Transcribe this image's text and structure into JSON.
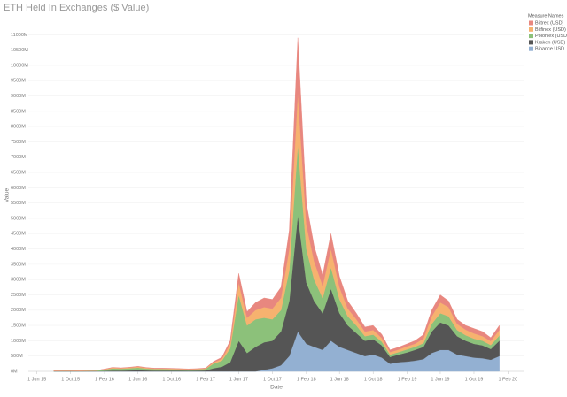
{
  "chart_data": {
    "type": "area",
    "stacked": true,
    "title": "ETH Held In Exchanges ($ Value)",
    "x_label": "Date",
    "y_label": "Value",
    "legend_title": "Measure Names",
    "legend_position": "top-right",
    "grid": true,
    "x": [
      "2015-08-01",
      "2015-09-01",
      "2015-10-01",
      "2015-11-01",
      "2015-12-01",
      "2016-01-01",
      "2016-02-01",
      "2016-03-01",
      "2016-04-01",
      "2016-05-01",
      "2016-06-01",
      "2016-07-01",
      "2016-08-01",
      "2016-09-01",
      "2016-10-01",
      "2016-11-01",
      "2016-12-01",
      "2017-01-01",
      "2017-02-01",
      "2017-03-01",
      "2017-04-01",
      "2017-05-01",
      "2017-06-01",
      "2017-07-01",
      "2017-08-01",
      "2017-09-01",
      "2017-10-01",
      "2017-11-01",
      "2017-12-01",
      "2018-01-01",
      "2018-02-01",
      "2018-03-01",
      "2018-04-01",
      "2018-05-01",
      "2018-06-01",
      "2018-07-01",
      "2018-08-01",
      "2018-09-01",
      "2018-10-01",
      "2018-11-01",
      "2018-12-01",
      "2019-01-01",
      "2019-02-01",
      "2019-03-01",
      "2019-04-01",
      "2019-05-01",
      "2019-06-01",
      "2019-07-01",
      "2019-08-01",
      "2019-09-01",
      "2019-10-01",
      "2019-11-01",
      "2019-12-01",
      "2020-01-01"
    ],
    "series": [
      {
        "name": "Bittrex (USD)",
        "color": "#e8877f",
        "values": [
          1,
          1,
          1,
          1,
          2,
          2,
          5,
          10,
          10,
          10,
          15,
          10,
          10,
          10,
          10,
          10,
          10,
          10,
          10,
          30,
          50,
          100,
          300,
          200,
          250,
          300,
          300,
          350,
          600,
          1800,
          700,
          500,
          350,
          500,
          350,
          250,
          200,
          150,
          150,
          120,
          70,
          80,
          80,
          100,
          130,
          200,
          250,
          200,
          150,
          140,
          160,
          150,
          110,
          150
        ]
      },
      {
        "name": "Bitfinex (USD)",
        "color": "#f6b26f",
        "values": [
          3,
          3,
          3,
          3,
          4,
          5,
          15,
          25,
          20,
          25,
          30,
          25,
          20,
          20,
          20,
          15,
          15,
          15,
          20,
          40,
          60,
          150,
          400,
          250,
          300,
          350,
          350,
          400,
          700,
          1700,
          800,
          600,
          400,
          600,
          400,
          250,
          200,
          150,
          150,
          120,
          80,
          80,
          100,
          100,
          150,
          250,
          350,
          300,
          200,
          180,
          170,
          150,
          130,
          180
        ]
      },
      {
        "name": "Poloniex (USD)",
        "color": "#8cc17a",
        "values": [
          10,
          12,
          12,
          10,
          12,
          15,
          40,
          70,
          60,
          70,
          80,
          60,
          50,
          50,
          45,
          40,
          35,
          40,
          50,
          150,
          200,
          450,
          1500,
          900,
          900,
          800,
          700,
          700,
          1000,
          2300,
          1100,
          700,
          500,
          700,
          450,
          300,
          250,
          150,
          150,
          120,
          80,
          80,
          100,
          100,
          120,
          250,
          300,
          300,
          200,
          180,
          170,
          150,
          130,
          170
        ]
      },
      {
        "name": "Kraken (USD)",
        "color": "#555555",
        "values": [
          3,
          4,
          4,
          4,
          5,
          6,
          15,
          25,
          25,
          30,
          40,
          30,
          25,
          25,
          25,
          25,
          20,
          25,
          30,
          100,
          150,
          300,
          1000,
          600,
          800,
          900,
          900,
          1100,
          1800,
          3800,
          2000,
          1500,
          1200,
          1700,
          1100,
          800,
          650,
          500,
          500,
          400,
          220,
          250,
          300,
          350,
          400,
          700,
          900,
          800,
          600,
          500,
          450,
          420,
          350,
          500
        ]
      },
      {
        "name": "Binance USD",
        "color": "#93b0d2",
        "values": [
          0,
          0,
          0,
          0,
          0,
          0,
          0,
          0,
          0,
          0,
          0,
          0,
          0,
          0,
          0,
          0,
          0,
          0,
          0,
          0,
          0,
          0,
          0,
          0,
          0,
          50,
          100,
          200,
          500,
          1300,
          900,
          800,
          700,
          1000,
          800,
          700,
          600,
          500,
          550,
          450,
          250,
          300,
          320,
          350,
          400,
          600,
          700,
          700,
          550,
          500,
          450,
          430,
          380,
          500
        ]
      }
    ],
    "xlim": [
      "2015-05-01",
      "2020-04-01"
    ],
    "xticks": [
      {
        "value": "2015-06-01",
        "label": "1 Jun 15"
      },
      {
        "value": "2015-10-01",
        "label": "1 Oct 15"
      },
      {
        "value": "2016-02-01",
        "label": "1 Feb 16"
      },
      {
        "value": "2016-06-01",
        "label": "1 Jun 16"
      },
      {
        "value": "2016-10-01",
        "label": "1 Oct 16"
      },
      {
        "value": "2017-02-01",
        "label": "1 Feb 17"
      },
      {
        "value": "2017-06-01",
        "label": "1 Jun 17"
      },
      {
        "value": "2017-10-01",
        "label": "1 Oct 17"
      },
      {
        "value": "2018-02-01",
        "label": "1 Feb 18"
      },
      {
        "value": "2018-06-01",
        "label": "1 Jun 18"
      },
      {
        "value": "2018-10-01",
        "label": "1 Oct 18"
      },
      {
        "value": "2019-02-01",
        "label": "1 Feb 19"
      },
      {
        "value": "2019-06-01",
        "label": "1 Jun 19"
      },
      {
        "value": "2019-10-01",
        "label": "1 Oct 19"
      },
      {
        "value": "2020-02-01",
        "label": "1 Feb 20"
      }
    ],
    "ylim": [
      0,
      11500
    ],
    "yticks": [
      {
        "value": 0,
        "label": "0M"
      },
      {
        "value": 500,
        "label": "500M"
      },
      {
        "value": 1000,
        "label": "1000M"
      },
      {
        "value": 1500,
        "label": "1500M"
      },
      {
        "value": 2000,
        "label": "2000M"
      },
      {
        "value": 2500,
        "label": "2500M"
      },
      {
        "value": 3000,
        "label": "3000M"
      },
      {
        "value": 3500,
        "label": "3500M"
      },
      {
        "value": 4000,
        "label": "4000M"
      },
      {
        "value": 4500,
        "label": "4500M"
      },
      {
        "value": 5000,
        "label": "5000M"
      },
      {
        "value": 5500,
        "label": "5500M"
      },
      {
        "value": 6000,
        "label": "6000M"
      },
      {
        "value": 6500,
        "label": "6500M"
      },
      {
        "value": 7000,
        "label": "7000M"
      },
      {
        "value": 7500,
        "label": "7500M"
      },
      {
        "value": 8000,
        "label": "8000M"
      },
      {
        "value": 8500,
        "label": "8500M"
      },
      {
        "value": 9000,
        "label": "9000M"
      },
      {
        "value": 9500,
        "label": "9500M"
      },
      {
        "value": 10000,
        "label": "10000M"
      },
      {
        "value": 10500,
        "label": "10500M"
      },
      {
        "value": 11000,
        "label": "11000M"
      }
    ]
  }
}
